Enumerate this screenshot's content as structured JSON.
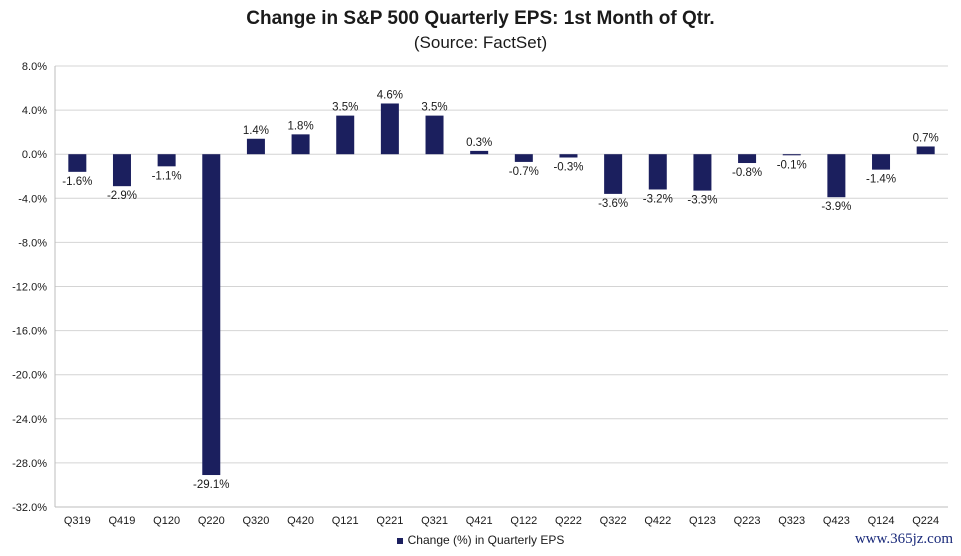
{
  "chart_data": {
    "type": "bar",
    "title": "Change in S&P 500 Quarterly EPS: 1st Month of Qtr.",
    "subtitle": "(Source: FactSet)",
    "categories": [
      "Q319",
      "Q419",
      "Q120",
      "Q220",
      "Q320",
      "Q420",
      "Q121",
      "Q221",
      "Q321",
      "Q421",
      "Q122",
      "Q222",
      "Q322",
      "Q422",
      "Q123",
      "Q223",
      "Q323",
      "Q423",
      "Q124",
      "Q224"
    ],
    "series": [
      {
        "name": "Change (%) in Quarterly EPS",
        "values": [
          -1.6,
          -2.9,
          -1.1,
          -29.1,
          1.4,
          1.8,
          3.5,
          4.6,
          3.5,
          0.3,
          -0.7,
          -0.3,
          -3.6,
          -3.2,
          -3.3,
          -0.8,
          -0.1,
          -3.9,
          -1.4,
          0.7
        ],
        "data_labels": [
          "-1.6%",
          "-2.9%",
          "-1.1%",
          "-29.1%",
          "1.4%",
          "1.8%",
          "3.5%",
          "4.6%",
          "3.5%",
          "0.3%",
          "-0.7%",
          "-0.3%",
          "-3.6%",
          "-3.2%",
          "-3.3%",
          "-0.8%",
          "-0.1%",
          "-3.9%",
          "-1.4%",
          "0.7%"
        ]
      }
    ],
    "ylim": [
      -32,
      8
    ],
    "yticks": [
      8,
      4,
      0,
      -4,
      -8,
      -12,
      -16,
      -20,
      -24,
      -28,
      -32
    ],
    "ytick_labels": [
      "8.0%",
      "4.0%",
      "0.0%",
      "-4.0%",
      "-8.0%",
      "-12.0%",
      "-16.0%",
      "-20.0%",
      "-24.0%",
      "-28.0%",
      "-32.0%"
    ],
    "grid": true,
    "legend_position": "bottom",
    "bar_color": "#1b1f5e",
    "grid_color": "#d4d4d4"
  },
  "watermark": "www.365jz.com"
}
